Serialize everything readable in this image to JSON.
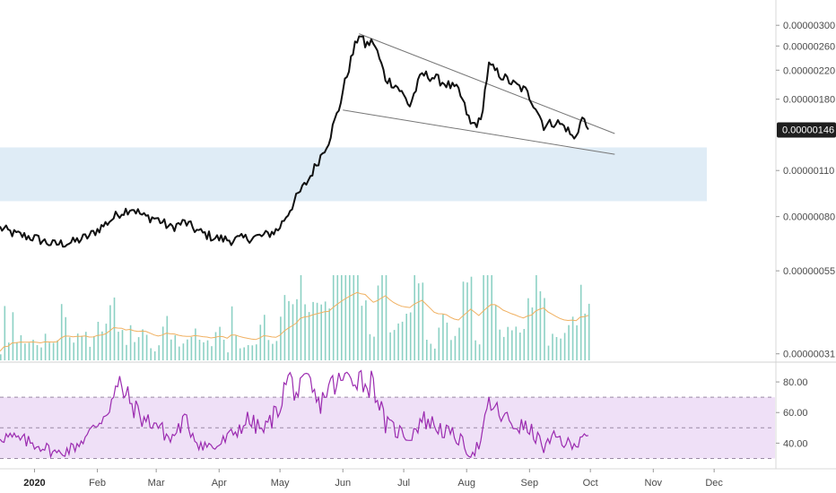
{
  "chart_data": [
    {
      "type": "line",
      "title": "",
      "xlabel": "",
      "ylabel": "",
      "xlim": [
        "2019-12-15",
        "2020-12-31"
      ],
      "ylim": [
        3e-07,
        3.4e-06
      ],
      "y_scale": "log",
      "y_ticks": [
        "0.00000300",
        "0.00000260",
        "0.00000220",
        "0.00000180",
        "0.00000110",
        "0.00000080",
        "0.00000055",
        "0.00000031"
      ],
      "x_ticks": [
        {
          "label": "2020",
          "date": "2020-01-01",
          "bold": true
        },
        {
          "label": "Feb",
          "date": "2020-02-01"
        },
        {
          "label": "Mar",
          "date": "2020-03-01"
        },
        {
          "label": "Apr",
          "date": "2020-04-01"
        },
        {
          "label": "May",
          "date": "2020-05-01"
        },
        {
          "label": "Jun",
          "date": "2020-06-01"
        },
        {
          "label": "Jul",
          "date": "2020-07-01"
        },
        {
          "label": "Aug",
          "date": "2020-08-01"
        },
        {
          "label": "Sep",
          "date": "2020-09-01"
        },
        {
          "label": "Oct",
          "date": "2020-10-01"
        },
        {
          "label": "Nov",
          "date": "2020-11-01"
        },
        {
          "label": "Dec",
          "date": "2020-12-01"
        }
      ],
      "last_price_label": "0.00000146",
      "colors": {
        "price": "#111111",
        "volume": "#66c2b0",
        "volume_ma": "#f0b060",
        "zone": "#d9e9f5",
        "rsi": "#9b2bb0",
        "rsi_band": "#efe0f7",
        "badge": "#1e1e1e"
      },
      "grid": false,
      "legend": "none",
      "series": [
        {
          "values": [
            [
              "2019-12-15",
              7.4e-07
            ],
            [
              "2019-12-22",
              7.1e-07
            ],
            [
              "2020-01-01",
              6.9e-07
            ],
            [
              "2020-01-10",
              6.6e-07
            ],
            [
              "2020-01-20",
              6.7e-07
            ],
            [
              "2020-01-28",
              7e-07
            ],
            [
              "2020-02-05",
              7.6e-07
            ],
            [
              "2020-02-12",
              8.2e-07
            ],
            [
              "2020-02-18",
              8.5e-07
            ],
            [
              "2020-02-24",
              8e-07
            ],
            [
              "2020-03-01",
              7.9e-07
            ],
            [
              "2020-03-08",
              7.4e-07
            ],
            [
              "2020-03-15",
              7.7e-07
            ],
            [
              "2020-03-22",
              7.2e-07
            ],
            [
              "2020-03-30",
              6.9e-07
            ],
            [
              "2020-04-07",
              6.8e-07
            ],
            [
              "2020-04-15",
              6.9e-07
            ],
            [
              "2020-04-23",
              7e-07
            ],
            [
              "2020-04-30",
              7.3e-07
            ],
            [
              "2020-05-05",
              8.2e-07
            ],
            [
              "2020-05-10",
              9.3e-07
            ],
            [
              "2020-05-15",
              1.03e-06
            ],
            [
              "2020-05-20",
              1.18e-06
            ],
            [
              "2020-05-25",
              1.35e-06
            ],
            [
              "2020-05-30",
              1.68e-06
            ],
            [
              "2020-06-04",
              2.24e-06
            ],
            [
              "2020-06-09",
              2.83e-06
            ],
            [
              "2020-06-12",
              2.62e-06
            ],
            [
              "2020-06-16",
              2.68e-06
            ],
            [
              "2020-06-22",
              2.08e-06
            ],
            [
              "2020-06-28",
              1.96e-06
            ],
            [
              "2020-07-04",
              1.72e-06
            ],
            [
              "2020-07-10",
              2.14e-06
            ],
            [
              "2020-07-16",
              2.09e-06
            ],
            [
              "2020-07-22",
              2e-06
            ],
            [
              "2020-07-28",
              1.91e-06
            ],
            [
              "2020-08-03",
              1.51e-06
            ],
            [
              "2020-08-08",
              1.54e-06
            ],
            [
              "2020-08-12",
              2.27e-06
            ],
            [
              "2020-08-18",
              2.12e-06
            ],
            [
              "2020-08-24",
              2e-06
            ],
            [
              "2020-08-30",
              1.91e-06
            ],
            [
              "2020-09-04",
              1.71e-06
            ],
            [
              "2020-09-08",
              1.5e-06
            ],
            [
              "2020-09-14",
              1.54e-06
            ],
            [
              "2020-09-19",
              1.48e-06
            ],
            [
              "2020-09-23",
              1.36e-06
            ],
            [
              "2020-09-27",
              1.58e-06
            ],
            [
              "2020-09-30",
              1.46e-06
            ]
          ]
        }
      ],
      "trendlines": [
        {
          "from": [
            "2020-06-09",
            2.83e-06
          ],
          "to": [
            "2020-10-13",
            1.42e-06
          ]
        },
        {
          "from": [
            "2020-06-01",
            1.67e-06
          ],
          "to": [
            "2020-10-13",
            1.23e-06
          ]
        }
      ],
      "zones": [
        {
          "from_y": 8.9e-07,
          "to_y": 1.29e-06
        }
      ],
      "volume_max": 90
    },
    {
      "type": "line",
      "title": "",
      "ylim": [
        25,
        90
      ],
      "y_ticks": [
        "80.00",
        "60.00",
        "40.00"
      ],
      "bands": [
        70,
        50,
        30
      ],
      "series": [
        {
          "values": [
            [
              "2019-12-15",
              45
            ],
            [
              "2019-12-25",
              42
            ],
            [
              "2020-01-05",
              38
            ],
            [
              "2020-01-12",
              33
            ],
            [
              "2020-01-20",
              37
            ],
            [
              "2020-01-28",
              46
            ],
            [
              "2020-02-05",
              60
            ],
            [
              "2020-02-12",
              78
            ],
            [
              "2020-02-18",
              65
            ],
            [
              "2020-02-24",
              55
            ],
            [
              "2020-03-01",
              53
            ],
            [
              "2020-03-08",
              42
            ],
            [
              "2020-03-15",
              55
            ],
            [
              "2020-03-22",
              40
            ],
            [
              "2020-03-30",
              37
            ],
            [
              "2020-04-07",
              45
            ],
            [
              "2020-04-15",
              55
            ],
            [
              "2020-04-23",
              48
            ],
            [
              "2020-04-30",
              62
            ],
            [
              "2020-05-05",
              83
            ],
            [
              "2020-05-10",
              72
            ],
            [
              "2020-05-15",
              80
            ],
            [
              "2020-05-20",
              64
            ],
            [
              "2020-05-25",
              77
            ],
            [
              "2020-05-30",
              79
            ],
            [
              "2020-06-04",
              83
            ],
            [
              "2020-06-09",
              85
            ],
            [
              "2020-06-12",
              78
            ],
            [
              "2020-06-16",
              80
            ],
            [
              "2020-06-22",
              52
            ],
            [
              "2020-06-28",
              48
            ],
            [
              "2020-07-04",
              44
            ],
            [
              "2020-07-10",
              56
            ],
            [
              "2020-07-16",
              52
            ],
            [
              "2020-07-22",
              47
            ],
            [
              "2020-07-28",
              43
            ],
            [
              "2020-08-03",
              33
            ],
            [
              "2020-08-08",
              40
            ],
            [
              "2020-08-12",
              66
            ],
            [
              "2020-08-18",
              58
            ],
            [
              "2020-08-24",
              52
            ],
            [
              "2020-08-30",
              50
            ],
            [
              "2020-09-04",
              45
            ],
            [
              "2020-09-08",
              37
            ],
            [
              "2020-09-14",
              44
            ],
            [
              "2020-09-19",
              40
            ],
            [
              "2020-09-23",
              37
            ],
            [
              "2020-09-27",
              48
            ],
            [
              "2020-09-30",
              45
            ]
          ]
        }
      ]
    }
  ]
}
